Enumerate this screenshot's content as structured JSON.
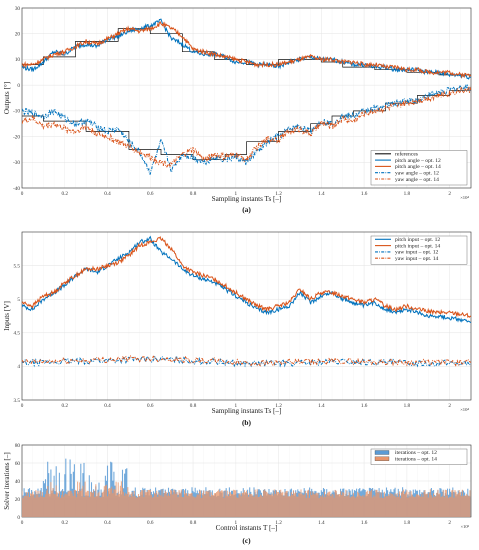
{
  "chart_data": [
    {
      "type": "line",
      "panel_label": "(a)",
      "ylabel": "Outputs [°]",
      "xlabel": "Sampling instants  T_S [–]",
      "x_multiplier": "×10⁴",
      "xlim": [
        0,
        2.1
      ],
      "ylim": [
        -40,
        30
      ],
      "xticks": [
        "0",
        "0.2",
        "0.4",
        "0.6",
        "0.8",
        "1",
        "1.2",
        "1.4",
        "1.6",
        "1.8",
        "2"
      ],
      "yticks": [
        "30",
        "20",
        "10",
        "0",
        "-10",
        "-20",
        "-30",
        "-40"
      ],
      "grid": true,
      "legend_position": "bottom-right",
      "series": [
        {
          "name": "references",
          "color": "#111111",
          "style": "solid",
          "x": [
            0,
            0.1,
            0.1,
            0.25,
            0.25,
            0.45,
            0.45,
            0.6,
            0.6,
            0.75,
            0.75,
            0.9,
            0.9,
            1.05,
            1.05,
            1.2,
            1.2,
            1.4,
            1.4,
            1.5,
            1.5,
            1.65,
            1.65,
            1.8,
            1.8,
            1.95,
            1.95,
            2.1
          ],
          "y": [
            8,
            8,
            11,
            11,
            17,
            17,
            22,
            22,
            20,
            20,
            13,
            13,
            10,
            10,
            8,
            8,
            10,
            10,
            9,
            9,
            7,
            7,
            6,
            6,
            5,
            5,
            4,
            4
          ]
        },
        {
          "name": "references",
          "color": "#111111",
          "style": "solid",
          "x": [
            0,
            0.1,
            0.1,
            0.3,
            0.3,
            0.5,
            0.5,
            0.65,
            0.65,
            0.8,
            0.8,
            0.95,
            0.95,
            1.05,
            1.05,
            1.2,
            1.2,
            1.35,
            1.35,
            1.45,
            1.45,
            1.55,
            1.55,
            1.7,
            1.7,
            1.85,
            1.85,
            2.0,
            2.0,
            2.1
          ],
          "y": [
            -12,
            -12,
            -14,
            -14,
            -18,
            -18,
            -25,
            -25,
            -27,
            -27,
            -29,
            -29,
            -27,
            -27,
            -22,
            -22,
            -18,
            -18,
            -15,
            -15,
            -12,
            -12,
            -10,
            -10,
            -7,
            -7,
            -4,
            -4,
            -2,
            -2
          ]
        },
        {
          "name": "pitch angle – opt. 12",
          "color": "#0072BD",
          "style": "solid",
          "x": [
            0,
            0.05,
            0.1,
            0.15,
            0.2,
            0.25,
            0.3,
            0.35,
            0.4,
            0.45,
            0.5,
            0.55,
            0.6,
            0.65,
            0.7,
            0.75,
            0.8,
            0.85,
            0.9,
            0.95,
            1.0,
            1.05,
            1.1,
            1.15,
            1.2,
            1.25,
            1.3,
            1.35,
            1.4,
            1.45,
            1.5,
            1.55,
            1.6,
            1.65,
            1.7,
            1.75,
            1.8,
            1.85,
            1.9,
            1.95,
            2.0,
            2.05,
            2.1
          ],
          "y": [
            7,
            6,
            9,
            13,
            12,
            15,
            16,
            15,
            18,
            19,
            21,
            22,
            23,
            25,
            18,
            16,
            13,
            12,
            12,
            11,
            9,
            9,
            8,
            8,
            7,
            9,
            10,
            11,
            10,
            10,
            9,
            8,
            8,
            7,
            7,
            6,
            6,
            6,
            5,
            5,
            4,
            4,
            3
          ]
        },
        {
          "name": "pitch angle – opt. 14",
          "color": "#D95319",
          "style": "solid",
          "x": [
            0,
            0.05,
            0.1,
            0.15,
            0.2,
            0.25,
            0.3,
            0.35,
            0.4,
            0.45,
            0.5,
            0.55,
            0.6,
            0.65,
            0.7,
            0.75,
            0.8,
            0.85,
            0.9,
            0.95,
            1.0,
            1.05,
            1.1,
            1.15,
            1.2,
            1.25,
            1.3,
            1.35,
            1.4,
            1.45,
            1.5,
            1.55,
            1.6,
            1.65,
            1.7,
            1.75,
            1.8,
            1.85,
            1.9,
            1.95,
            2.0,
            2.05,
            2.1
          ],
          "y": [
            8,
            8,
            10,
            12,
            13,
            15,
            17,
            16,
            18,
            20,
            22,
            21,
            22,
            24,
            22,
            19,
            14,
            13,
            12,
            11,
            10,
            9,
            8,
            8,
            8,
            9,
            10,
            11,
            10,
            10,
            9,
            9,
            8,
            8,
            7,
            7,
            6,
            6,
            5,
            5,
            5,
            4,
            4
          ]
        },
        {
          "name": "yaw angle – opt. 12",
          "color": "#0072BD",
          "style": "dashdot",
          "x": [
            0,
            0.05,
            0.1,
            0.15,
            0.2,
            0.25,
            0.3,
            0.35,
            0.4,
            0.45,
            0.5,
            0.55,
            0.6,
            0.65,
            0.7,
            0.75,
            0.8,
            0.85,
            0.9,
            0.95,
            1.0,
            1.05,
            1.1,
            1.15,
            1.2,
            1.25,
            1.3,
            1.35,
            1.4,
            1.45,
            1.5,
            1.55,
            1.6,
            1.65,
            1.7,
            1.75,
            1.8,
            1.85,
            1.9,
            1.95,
            2.0,
            2.05,
            2.1
          ],
          "y": [
            -10,
            -11,
            -12,
            -10,
            -13,
            -15,
            -14,
            -16,
            -18,
            -17,
            -22,
            -26,
            -34,
            -22,
            -33,
            -27,
            -28,
            -30,
            -28,
            -29,
            -28,
            -30,
            -26,
            -22,
            -20,
            -17,
            -16,
            -18,
            -14,
            -15,
            -12,
            -12,
            -10,
            -9,
            -8,
            -7,
            -6,
            -6,
            -4,
            -3,
            -2,
            -1,
            -1
          ]
        },
        {
          "name": "yaw angle – opt. 14",
          "color": "#D95319",
          "style": "dashdot",
          "x": [
            0,
            0.05,
            0.1,
            0.15,
            0.2,
            0.25,
            0.3,
            0.35,
            0.4,
            0.45,
            0.5,
            0.55,
            0.6,
            0.65,
            0.7,
            0.75,
            0.8,
            0.85,
            0.9,
            0.95,
            1.0,
            1.05,
            1.1,
            1.15,
            1.2,
            1.25,
            1.3,
            1.35,
            1.4,
            1.45,
            1.5,
            1.55,
            1.6,
            1.65,
            1.7,
            1.75,
            1.8,
            1.85,
            1.9,
            1.95,
            2.0,
            2.05,
            2.1
          ],
          "y": [
            -14,
            -13,
            -16,
            -15,
            -17,
            -18,
            -16,
            -19,
            -20,
            -22,
            -24,
            -26,
            -28,
            -30,
            -31,
            -27,
            -25,
            -29,
            -27,
            -28,
            -27,
            -29,
            -24,
            -21,
            -21,
            -18,
            -17,
            -19,
            -15,
            -16,
            -13,
            -14,
            -11,
            -10,
            -9,
            -8,
            -7,
            -6,
            -5,
            -4,
            -3,
            -2,
            -2
          ]
        }
      ]
    },
    {
      "type": "line",
      "panel_label": "(b)",
      "ylabel": "Inputs [V]",
      "xlabel": "Sampling instants  T_S [–]",
      "x_multiplier": "×10⁴",
      "xlim": [
        0,
        2.1
      ],
      "ylim": [
        3.5,
        6
      ],
      "xticks": [
        "0",
        "0.2",
        "0.4",
        "0.6",
        "0.8",
        "1",
        "1.2",
        "1.4",
        "1.6",
        "1.8",
        "2"
      ],
      "yticks": [
        "5.5",
        "5",
        "4.5",
        "4",
        "3.5"
      ],
      "grid": true,
      "legend_position": "top-right",
      "series": [
        {
          "name": "pitch input – opt. 12",
          "color": "#0072BD",
          "style": "solid",
          "x": [
            0,
            0.05,
            0.1,
            0.15,
            0.2,
            0.25,
            0.3,
            0.35,
            0.4,
            0.45,
            0.5,
            0.55,
            0.6,
            0.65,
            0.7,
            0.75,
            0.8,
            0.85,
            0.9,
            0.95,
            1.0,
            1.05,
            1.1,
            1.15,
            1.2,
            1.25,
            1.3,
            1.35,
            1.4,
            1.45,
            1.5,
            1.55,
            1.6,
            1.65,
            1.7,
            1.75,
            1.8,
            1.85,
            1.9,
            1.95,
            2.0,
            2.05,
            2.1
          ],
          "y": [
            4.9,
            4.85,
            5.0,
            5.1,
            5.2,
            5.35,
            5.45,
            5.4,
            5.5,
            5.6,
            5.7,
            5.85,
            5.9,
            5.7,
            5.6,
            5.45,
            5.35,
            5.3,
            5.25,
            5.15,
            5.05,
            4.95,
            4.85,
            4.8,
            4.85,
            4.9,
            5.1,
            4.95,
            5.05,
            5.1,
            5.0,
            4.95,
            4.9,
            4.95,
            4.85,
            4.8,
            4.85,
            4.8,
            4.75,
            4.75,
            4.72,
            4.7,
            4.65
          ]
        },
        {
          "name": "pitch input – opt. 14",
          "color": "#D95319",
          "style": "solid",
          "x": [
            0,
            0.05,
            0.1,
            0.15,
            0.2,
            0.25,
            0.3,
            0.35,
            0.4,
            0.45,
            0.5,
            0.55,
            0.6,
            0.65,
            0.7,
            0.75,
            0.8,
            0.85,
            0.9,
            0.95,
            1.0,
            1.05,
            1.1,
            1.15,
            1.2,
            1.25,
            1.3,
            1.35,
            1.4,
            1.45,
            1.5,
            1.55,
            1.6,
            1.65,
            1.7,
            1.75,
            1.8,
            1.85,
            1.9,
            1.95,
            2.0,
            2.05,
            2.1
          ],
          "y": [
            4.95,
            4.9,
            5.05,
            5.1,
            5.25,
            5.35,
            5.45,
            5.45,
            5.5,
            5.55,
            5.65,
            5.8,
            5.85,
            5.9,
            5.75,
            5.5,
            5.4,
            5.35,
            5.3,
            5.2,
            5.1,
            5.0,
            4.9,
            4.85,
            4.9,
            4.95,
            5.15,
            5.0,
            5.1,
            5.1,
            5.05,
            5.0,
            4.95,
            5.0,
            4.9,
            4.85,
            4.9,
            4.85,
            4.82,
            4.8,
            4.8,
            4.78,
            4.75
          ]
        },
        {
          "name": "yaw input – opt. 12",
          "color": "#0072BD",
          "style": "dashdot",
          "x": [
            0,
            0.1,
            0.2,
            0.3,
            0.4,
            0.5,
            0.6,
            0.7,
            0.8,
            0.9,
            1.0,
            1.1,
            1.2,
            1.3,
            1.4,
            1.5,
            1.6,
            1.7,
            1.8,
            1.9,
            2.0,
            2.1
          ],
          "y": [
            4.05,
            4.06,
            4.07,
            4.08,
            4.09,
            4.1,
            4.11,
            4.1,
            4.08,
            4.07,
            4.05,
            4.04,
            4.05,
            4.05,
            4.06,
            4.07,
            4.06,
            4.06,
            4.05,
            4.05,
            4.05,
            4.05
          ]
        },
        {
          "name": "yaw input – opt. 14",
          "color": "#D95319",
          "style": "dashdot",
          "x": [
            0,
            0.1,
            0.2,
            0.3,
            0.4,
            0.5,
            0.6,
            0.7,
            0.8,
            0.9,
            1.0,
            1.1,
            1.2,
            1.3,
            1.4,
            1.5,
            1.6,
            1.7,
            1.8,
            1.9,
            2.0,
            2.1
          ],
          "y": [
            4.06,
            4.07,
            4.08,
            4.09,
            4.1,
            4.11,
            4.12,
            4.11,
            4.09,
            4.08,
            4.06,
            4.05,
            4.06,
            4.06,
            4.07,
            4.08,
            4.07,
            4.07,
            4.06,
            4.06,
            4.06,
            4.06
          ]
        }
      ]
    },
    {
      "type": "bar",
      "panel_label": "(c)",
      "ylabel": "Solver iterations [–]",
      "xlabel": "Control instants  T [–]",
      "x_multiplier": "×10³",
      "xlim": [
        0,
        2.1
      ],
      "ylim": [
        0,
        80
      ],
      "xticks": [
        "0",
        "0.2",
        "0.4",
        "0.6",
        "0.8",
        "1",
        "1.2",
        "1.4",
        "1.6",
        "1.8",
        "2"
      ],
      "yticks": [
        "80",
        "60",
        "40",
        "20",
        "0"
      ],
      "grid": true,
      "legend_position": "top-right",
      "series": [
        {
          "name": "iterations – opt. 12",
          "color": "#5B9BD5",
          "typical_value": 30,
          "peak_value": 65,
          "peak_region": [
            0.1,
            0.5
          ]
        },
        {
          "name": "iterations – opt. 14",
          "color": "#E8956B",
          "typical_value": 28,
          "peak_value": 40,
          "peak_region": [
            0.1,
            0.5
          ]
        }
      ]
    }
  ]
}
